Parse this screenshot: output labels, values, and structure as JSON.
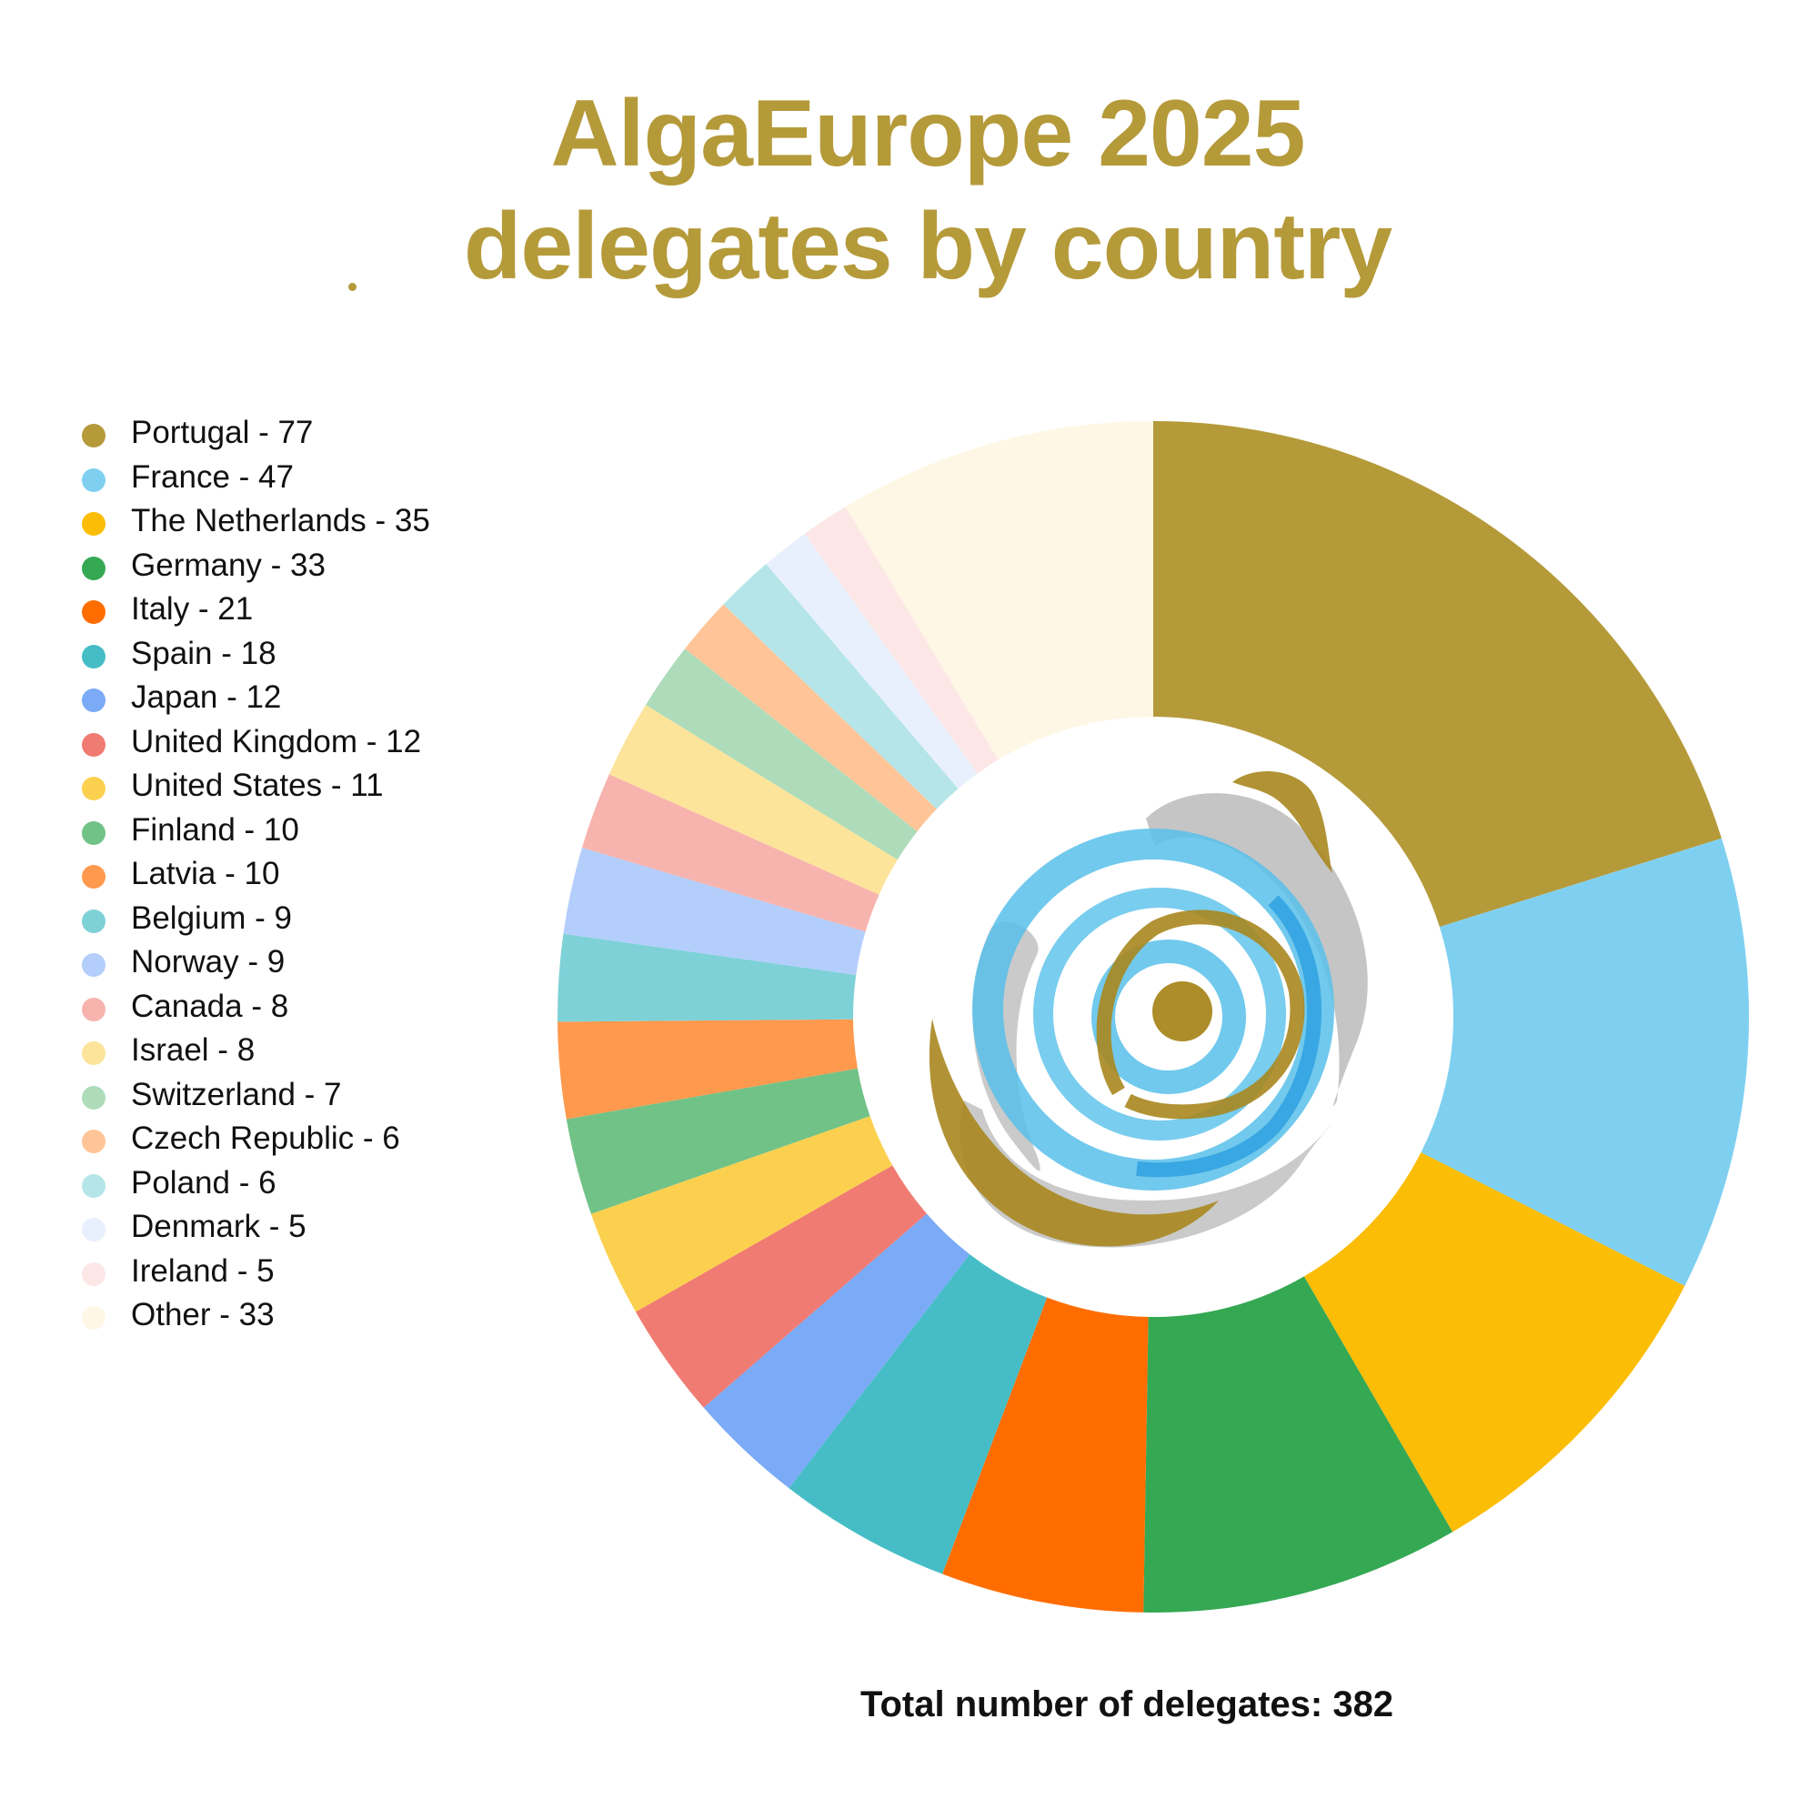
{
  "chart_data": {
    "type": "pie",
    "title_lines": [
      "AlgaEurope 2025",
      "delegates by country"
    ],
    "categories": [
      "Portugal",
      "France",
      "The Netherlands",
      "Germany",
      "Italy",
      "Spain",
      "Japan",
      "United Kingdom",
      "United States",
      "Finland",
      "Latvia",
      "Belgium",
      "Norway",
      "Canada",
      "Israel",
      "Switzerland",
      "Czech Republic",
      "Poland",
      "Denmark",
      "Ireland",
      "Other"
    ],
    "values": [
      77,
      47,
      35,
      33,
      21,
      18,
      12,
      12,
      11,
      10,
      10,
      9,
      9,
      8,
      8,
      7,
      6,
      6,
      5,
      5,
      33
    ],
    "colors": [
      "#b59a3a",
      "#7fd0f0",
      "#fbbd06",
      "#35a853",
      "#ff6d01",
      "#46bdc6",
      "#7baaf7",
      "#f07b72",
      "#fcd04f",
      "#71c287",
      "#ff994d",
      "#7ed1d7",
      "#b3cefb",
      "#f7b4ae",
      "#fde49b",
      "#aedcba",
      "#ffc599",
      "#b5e5e8",
      "#e9f0fd",
      "#fde7e6",
      "#fef7e5"
    ],
    "legend_labels": [
      "Portugal - 77",
      "France - 47",
      "The Netherlands - 35",
      "Germany - 33",
      "Italy - 21",
      "Spain - 18",
      "Japan - 12",
      "United Kingdom - 12",
      "United States - 11",
      "Finland - 10",
      "Latvia - 10",
      "Belgium - 9",
      "Norway - 9",
      "Canada - 8",
      "Israel - 8",
      "Switzerland - 7",
      "Czech Republic - 6",
      "Poland - 6",
      "Denmark - 5",
      "Ireland - 5",
      "Other - 33"
    ],
    "legend_position": "left",
    "donut": true,
    "center_image": "algaeurope-swirl-logo",
    "total_label": "Total number of delegates: 382"
  }
}
